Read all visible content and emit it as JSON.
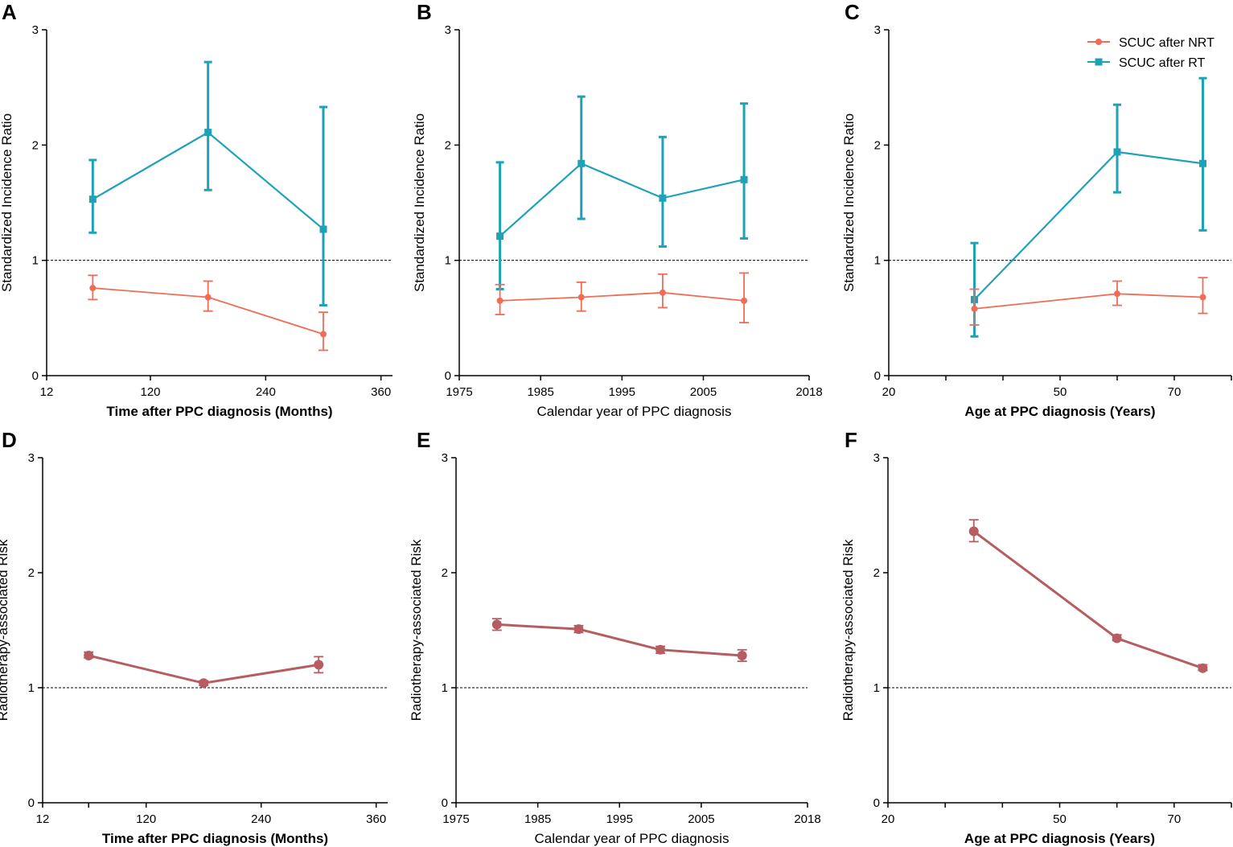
{
  "colors": {
    "nrt": "#ef6c57",
    "rt": "#1fa2b8",
    "risk": "#b55d60",
    "axis": "#000000"
  },
  "legend": {
    "nrt_label": "SCUC after NRT",
    "rt_label": "SCUC after RT"
  },
  "chart_data": [
    {
      "panel": "A",
      "type": "line",
      "xlabel": "Time after PPC diagnosis (Months)",
      "xlabel_bold": true,
      "ylabel": "Standardized Incidence Ratio",
      "xlim": [
        12,
        372
      ],
      "ylim": [
        0,
        3
      ],
      "xticks": [
        12,
        120,
        240,
        360
      ],
      "xtick_labels": [
        "12",
        "120",
        "240",
        "360"
      ],
      "xminor": [],
      "yticks": [
        0,
        1,
        2,
        3
      ],
      "reference_line": 1,
      "series": [
        {
          "name": "SCUC after RT",
          "color_key": "rt",
          "marker": "square",
          "x": [
            60,
            180,
            300
          ],
          "y": [
            1.53,
            2.11,
            1.27
          ],
          "lower": [
            1.24,
            1.61,
            0.61
          ],
          "upper": [
            1.87,
            2.72,
            2.33
          ]
        },
        {
          "name": "SCUC after NRT",
          "color_key": "nrt",
          "marker": "circle",
          "x": [
            60,
            180,
            300
          ],
          "y": [
            0.76,
            0.68,
            0.36
          ],
          "lower": [
            0.66,
            0.56,
            0.22
          ],
          "upper": [
            0.87,
            0.82,
            0.55
          ]
        }
      ]
    },
    {
      "panel": "B",
      "type": "line",
      "xlabel": "Calendar year of PPC diagnosis",
      "xlabel_bold": false,
      "ylabel": "Standardized Incidence Ratio",
      "xlim": [
        1975,
        2018
      ],
      "ylim": [
        0,
        3
      ],
      "xticks": [
        1975,
        1985,
        1995,
        2005,
        2018
      ],
      "xtick_labels": [
        "1975",
        "1985",
        "1995",
        "2005",
        "2018"
      ],
      "xminor": [],
      "yticks": [
        0,
        1,
        2,
        3
      ],
      "reference_line": 1,
      "series": [
        {
          "name": "SCUC after RT",
          "color_key": "rt",
          "marker": "square",
          "x": [
            1980,
            1990,
            2000,
            2010
          ],
          "y": [
            1.21,
            1.84,
            1.54,
            1.7
          ],
          "lower": [
            0.75,
            1.36,
            1.12,
            1.19
          ],
          "upper": [
            1.85,
            2.42,
            2.07,
            2.36
          ]
        },
        {
          "name": "SCUC after NRT",
          "color_key": "nrt",
          "marker": "circle",
          "x": [
            1980,
            1990,
            2000,
            2010
          ],
          "y": [
            0.65,
            0.68,
            0.72,
            0.65
          ],
          "lower": [
            0.53,
            0.56,
            0.59,
            0.46
          ],
          "upper": [
            0.79,
            0.81,
            0.88,
            0.89
          ]
        }
      ]
    },
    {
      "panel": "C",
      "type": "line",
      "xlabel": "Age at PPC diagnosis (Years)",
      "xlabel_bold": true,
      "ylabel": "Standardized Incidence Ratio",
      "xlim": [
        20,
        80
      ],
      "ylim": [
        0,
        3
      ],
      "xticks": [
        20,
        50,
        70
      ],
      "xtick_labels": [
        "20",
        "50",
        "70"
      ],
      "xminor": [
        30,
        40,
        60,
        80
      ],
      "yticks": [
        0,
        1,
        2,
        3
      ],
      "reference_line": 1,
      "show_legend": true,
      "series": [
        {
          "name": "SCUC after RT",
          "color_key": "rt",
          "marker": "square",
          "x": [
            35,
            60,
            75
          ],
          "y": [
            0.66,
            1.94,
            1.84
          ],
          "lower": [
            0.34,
            1.59,
            1.26
          ],
          "upper": [
            1.15,
            2.35,
            2.58
          ]
        },
        {
          "name": "SCUC after NRT",
          "color_key": "nrt",
          "marker": "circle",
          "x": [
            35,
            60,
            75
          ],
          "y": [
            0.58,
            0.71,
            0.68
          ],
          "lower": [
            0.44,
            0.61,
            0.54
          ],
          "upper": [
            0.75,
            0.82,
            0.85
          ]
        }
      ]
    },
    {
      "panel": "D",
      "type": "line",
      "xlabel": "Time after PPC diagnosis (Months)",
      "xlabel_bold": true,
      "ylabel": "Radiotherapy-associated Risk",
      "xlim": [
        12,
        372
      ],
      "ylim": [
        0,
        3
      ],
      "xticks": [
        12,
        120,
        240,
        360
      ],
      "xtick_labels": [
        "12",
        "120",
        "240",
        "360"
      ],
      "xminor": [
        60
      ],
      "yticks": [
        0,
        1,
        2,
        3
      ],
      "reference_line": 1,
      "series": [
        {
          "name": "Radiotherapy-associated Risk",
          "color_key": "risk",
          "marker": "bigcircle",
          "x": [
            60,
            180,
            300
          ],
          "y": [
            1.28,
            1.04,
            1.2
          ],
          "lower": [
            1.26,
            1.02,
            1.13
          ],
          "upper": [
            1.31,
            1.06,
            1.27
          ]
        }
      ]
    },
    {
      "panel": "E",
      "type": "line",
      "xlabel": "Calendar year of PPC diagnosis",
      "xlabel_bold": false,
      "ylabel": "Radiotherapy-associated Risk",
      "xlim": [
        1975,
        2018
      ],
      "ylim": [
        0,
        3
      ],
      "xticks": [
        1975,
        1985,
        1995,
        2005,
        2018
      ],
      "xtick_labels": [
        "1975",
        "1985",
        "1995",
        "2005",
        "2018"
      ],
      "xminor": [],
      "yticks": [
        0,
        1,
        2,
        3
      ],
      "reference_line": 1,
      "series": [
        {
          "name": "Radiotherapy-associated Risk",
          "color_key": "risk",
          "marker": "bigcircle",
          "x": [
            1980,
            1990,
            2000,
            2010
          ],
          "y": [
            1.55,
            1.51,
            1.33,
            1.28
          ],
          "lower": [
            1.5,
            1.48,
            1.3,
            1.23
          ],
          "upper": [
            1.6,
            1.54,
            1.36,
            1.33
          ]
        }
      ]
    },
    {
      "panel": "F",
      "type": "line",
      "xlabel": "Age at PPC diagnosis (Years)",
      "xlabel_bold": true,
      "ylabel": "Radiotherapy-associated Risk",
      "xlim": [
        20,
        80
      ],
      "ylim": [
        0,
        3
      ],
      "xticks": [
        20,
        50,
        70
      ],
      "xtick_labels": [
        "20",
        "50",
        "70"
      ],
      "xminor": [
        30,
        40,
        60,
        80
      ],
      "yticks": [
        0,
        1,
        2,
        3
      ],
      "reference_line": 1,
      "series": [
        {
          "name": "Radiotherapy-associated Risk",
          "color_key": "risk",
          "marker": "bigcircle",
          "x": [
            35,
            60,
            75
          ],
          "y": [
            2.36,
            1.43,
            1.17
          ],
          "lower": [
            2.27,
            1.41,
            1.15
          ],
          "upper": [
            2.46,
            1.46,
            1.2
          ]
        }
      ]
    }
  ]
}
